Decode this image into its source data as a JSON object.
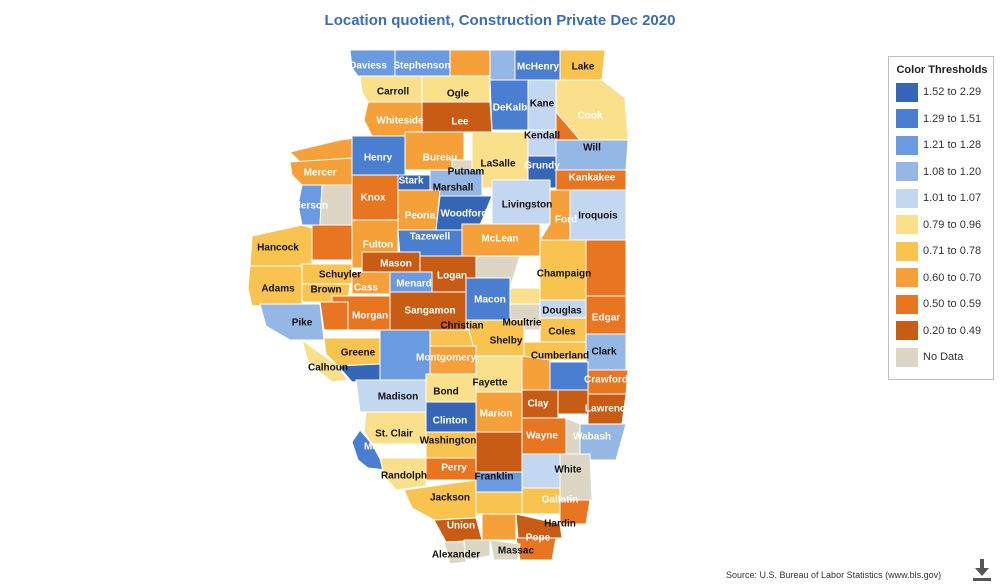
{
  "title": "Location quotient, Construction Private Dec 2020",
  "source": "Source: U.S. Bureau of Labor Statistics (www.bls.gov)",
  "download_icon": "download-icon",
  "legend": {
    "title": "Color Thresholds",
    "items": [
      {
        "label": "1.52 to 2.29",
        "color": "#3666b8"
      },
      {
        "label": "1.29 to 1.51",
        "color": "#4a7ed0"
      },
      {
        "label": "1.21 to 1.28",
        "color": "#6a9ae0"
      },
      {
        "label": "1.08 to 1.20",
        "color": "#95b7e6"
      },
      {
        "label": "1.01 to 1.07",
        "color": "#c3d7f1"
      },
      {
        "label": "0.79 to 0.96",
        "color": "#fbe08c"
      },
      {
        "label": "0.71 to 0.78",
        "color": "#f9c350"
      },
      {
        "label": "0.60 to 0.70",
        "color": "#f6a03a"
      },
      {
        "label": "0.50 to 0.59",
        "color": "#e8751f"
      },
      {
        "label": "0.20 to 0.49",
        "color": "#c85c14"
      },
      {
        "label": "No Data",
        "color": "#ddd6c4"
      }
    ]
  },
  "counties": [
    {
      "name": "Daviess",
      "label": "Daviess",
      "class": 2,
      "text": "white"
    },
    {
      "name": "Stephenson",
      "label": "Stephenson",
      "class": 2,
      "text": "white"
    },
    {
      "name": "Winnebago",
      "label": "",
      "class": 7,
      "text": "white"
    },
    {
      "name": "Boone",
      "label": "",
      "class": 3,
      "text": "white"
    },
    {
      "name": "McHenry",
      "label": "McHenry",
      "class": 1,
      "text": "white"
    },
    {
      "name": "Lake",
      "label": "Lake",
      "class": 6,
      "text": "black"
    },
    {
      "name": "Carroll",
      "label": "Carroll",
      "class": 5,
      "text": "black"
    },
    {
      "name": "Ogle",
      "label": "Ogle",
      "class": 5,
      "text": "black"
    },
    {
      "name": "DeKalb",
      "label": "DeKalb",
      "class": 1,
      "text": "white"
    },
    {
      "name": "Kane",
      "label": "Kane",
      "class": 4,
      "text": "black"
    },
    {
      "name": "Cook",
      "label": "Cook",
      "class": 5,
      "text": "white"
    },
    {
      "name": "Whiteside",
      "label": "Whiteside",
      "class": 7,
      "text": "white"
    },
    {
      "name": "Lee",
      "label": "Lee",
      "class": 9,
      "text": "white"
    },
    {
      "name": "DuPage",
      "label": "",
      "class": 8,
      "text": "white"
    },
    {
      "name": "Kendall",
      "label": "Kendall",
      "class": 4,
      "text": "black"
    },
    {
      "name": "Will",
      "label": "Will",
      "class": 3,
      "text": "black"
    },
    {
      "name": "RockIsland",
      "label": "",
      "class": 7,
      "text": "white"
    },
    {
      "name": "Henry",
      "label": "Henry",
      "class": 1,
      "text": "white"
    },
    {
      "name": "Bureau",
      "label": "Bureau",
      "class": 7,
      "text": "white"
    },
    {
      "name": "Putnam",
      "label": "Putnam",
      "class": 10,
      "text": "black"
    },
    {
      "name": "LaSalle",
      "label": "LaSalle",
      "class": 5,
      "text": "black"
    },
    {
      "name": "Grundy",
      "label": "Grundy",
      "class": 0,
      "text": "white"
    },
    {
      "name": "Mercer",
      "label": "Mercer",
      "class": 7,
      "text": "white"
    },
    {
      "name": "Stark",
      "label": "Stark",
      "class": 0,
      "text": "white"
    },
    {
      "name": "Marshall",
      "label": "Marshall",
      "class": 3,
      "text": "black"
    },
    {
      "name": "Kankakee",
      "label": "Kankakee",
      "class": 8,
      "text": "white"
    },
    {
      "name": "Henderson",
      "label": "Henderson",
      "class": 2,
      "text": "white"
    },
    {
      "name": "Warren",
      "label": "",
      "class": 10,
      "text": "black"
    },
    {
      "name": "Knox",
      "label": "Knox",
      "class": 8,
      "text": "white"
    },
    {
      "name": "Peoria",
      "label": "Peoria",
      "class": 7,
      "text": "white"
    },
    {
      "name": "Woodford",
      "label": "Woodford",
      "class": 0,
      "text": "white"
    },
    {
      "name": "Livingston",
      "label": "Livingston",
      "class": 4,
      "text": "black"
    },
    {
      "name": "Ford",
      "label": "Ford",
      "class": 7,
      "text": "white"
    },
    {
      "name": "Iroquois",
      "label": "Iroquois",
      "class": 4,
      "text": "black"
    },
    {
      "name": "Hancock",
      "label": "Hancock",
      "class": 6,
      "text": "black"
    },
    {
      "name": "McDonough",
      "label": "",
      "class": 8,
      "text": "white"
    },
    {
      "name": "Fulton",
      "label": "Fulton",
      "class": 7,
      "text": "white"
    },
    {
      "name": "Tazewell",
      "label": "Tazewell",
      "class": 1,
      "text": "white"
    },
    {
      "name": "McLean",
      "label": "McLean",
      "class": 7,
      "text": "white"
    },
    {
      "name": "Vermilion",
      "label": "",
      "class": 8,
      "text": "white"
    },
    {
      "name": "Adams",
      "label": "Adams",
      "class": 6,
      "text": "black"
    },
    {
      "name": "Schuyler",
      "label": "Schuyler",
      "class": 6,
      "text": "black"
    },
    {
      "name": "Brown",
      "label": "Brown",
      "class": 6,
      "text": "black"
    },
    {
      "name": "Mason",
      "label": "Mason",
      "class": 9,
      "text": "white"
    },
    {
      "name": "Logan",
      "label": "Logan",
      "class": 9,
      "text": "white"
    },
    {
      "name": "DeWitt",
      "label": "",
      "class": 10,
      "text": "black"
    },
    {
      "name": "Champaign",
      "label": "Champaign",
      "class": 6,
      "text": "black"
    },
    {
      "name": "Cass",
      "label": "Cass",
      "class": 7,
      "text": "white"
    },
    {
      "name": "Menard",
      "label": "Menard",
      "class": 2,
      "text": "white"
    },
    {
      "name": "Piatt",
      "label": "",
      "class": 5,
      "text": "black"
    },
    {
      "name": "Pike",
      "label": "Pike",
      "class": 3,
      "text": "black"
    },
    {
      "name": "Morgan",
      "label": "Morgan",
      "class": 8,
      "text": "white"
    },
    {
      "name": "Sangamon",
      "label": "Sangamon",
      "class": 9,
      "text": "white"
    },
    {
      "name": "Macon",
      "label": "Macon",
      "class": 1,
      "text": "white"
    },
    {
      "name": "Douglas",
      "label": "Douglas",
      "class": 4,
      "text": "black"
    },
    {
      "name": "Edgar",
      "label": "Edgar",
      "class": 8,
      "text": "white"
    },
    {
      "name": "Scott",
      "label": "",
      "class": 8,
      "text": "white"
    },
    {
      "name": "Christian",
      "label": "Christian",
      "class": 6,
      "text": "black"
    },
    {
      "name": "Moultrie",
      "label": "Moultrie",
      "class": 10,
      "text": "black"
    },
    {
      "name": "Coles",
      "label": "Coles",
      "class": 6,
      "text": "black"
    },
    {
      "name": "Shelby",
      "label": "Shelby",
      "class": 6,
      "text": "black"
    },
    {
      "name": "Greene",
      "label": "Greene",
      "class": 6,
      "text": "black"
    },
    {
      "name": "Macoupin",
      "label": "",
      "class": 2,
      "text": "white"
    },
    {
      "name": "Montgomery",
      "label": "Montgomery",
      "class": 7,
      "text": "white"
    },
    {
      "name": "Cumberland",
      "label": "Cumberland",
      "class": 6,
      "text": "black"
    },
    {
      "name": "Clark",
      "label": "Clark",
      "class": 3,
      "text": "black"
    },
    {
      "name": "Calhoun",
      "label": "Calhoun",
      "class": 5,
      "text": "black"
    },
    {
      "name": "Jersey",
      "label": "",
      "class": 0,
      "text": "white"
    },
    {
      "name": "Fayette",
      "label": "Fayette",
      "class": 5,
      "text": "black"
    },
    {
      "name": "Effingham",
      "label": "",
      "class": 7,
      "text": "white"
    },
    {
      "name": "Jasper",
      "label": "",
      "class": 1,
      "text": "white"
    },
    {
      "name": "Crawford",
      "label": "Crawford",
      "class": 8,
      "text": "white"
    },
    {
      "name": "Bond",
      "label": "Bond",
      "class": 5,
      "text": "black"
    },
    {
      "name": "Madison",
      "label": "Madison",
      "class": 4,
      "text": "black"
    },
    {
      "name": "Clay",
      "label": "Clay",
      "class": 9,
      "text": "white"
    },
    {
      "name": "Richland",
      "label": "",
      "class": 9,
      "text": "white"
    },
    {
      "name": "Lawrence",
      "label": "Lawrence",
      "class": 9,
      "text": "white"
    },
    {
      "name": "Clinton",
      "label": "Clinton",
      "class": 0,
      "text": "white"
    },
    {
      "name": "Marion",
      "label": "Marion",
      "class": 7,
      "text": "white"
    },
    {
      "name": "StClair",
      "label": "St. Clair",
      "class": 5,
      "text": "black"
    },
    {
      "name": "Wayne",
      "label": "Wayne",
      "class": 8,
      "text": "white"
    },
    {
      "name": "Wabash",
      "label": "Wabash",
      "class": 3,
      "text": "white"
    },
    {
      "name": "Edwards",
      "label": "",
      "class": 10,
      "text": "black"
    },
    {
      "name": "Monroe",
      "label": "Monroe",
      "class": 1,
      "text": "white"
    },
    {
      "name": "Washington",
      "label": "Washington",
      "class": 6,
      "text": "black"
    },
    {
      "name": "Jefferson",
      "label": "",
      "class": 9,
      "text": "white"
    },
    {
      "name": "Hamilton",
      "label": "",
      "class": 4,
      "text": "black"
    },
    {
      "name": "White",
      "label": "White",
      "class": 10,
      "text": "black"
    },
    {
      "name": "Randolph",
      "label": "Randolph",
      "class": 5,
      "text": "black"
    },
    {
      "name": "Perry",
      "label": "Perry",
      "class": 8,
      "text": "white"
    },
    {
      "name": "Franklin",
      "label": "Franklin",
      "class": 2,
      "text": "black"
    },
    {
      "name": "Jackson",
      "label": "Jackson",
      "class": 6,
      "text": "black"
    },
    {
      "name": "Williamson",
      "label": "",
      "class": 6,
      "text": "black"
    },
    {
      "name": "Saline",
      "label": "",
      "class": 6,
      "text": "black"
    },
    {
      "name": "Gallatin",
      "label": "Gallatin",
      "class": 8,
      "text": "white"
    },
    {
      "name": "Union",
      "label": "Union",
      "class": 9,
      "text": "white"
    },
    {
      "name": "Johnson",
      "label": "",
      "class": 7,
      "text": "white"
    },
    {
      "name": "Hardin",
      "label": "Hardin",
      "class": 9,
      "text": "black"
    },
    {
      "name": "Pope",
      "label": "Pope",
      "class": 8,
      "text": "white"
    },
    {
      "name": "Alexander",
      "label": "Alexander",
      "class": 10,
      "text": "black"
    },
    {
      "name": "Pulaski",
      "label": "",
      "class": 10,
      "text": "black"
    },
    {
      "name": "Massac",
      "label": "Massac",
      "class": 10,
      "text": "black"
    }
  ]
}
